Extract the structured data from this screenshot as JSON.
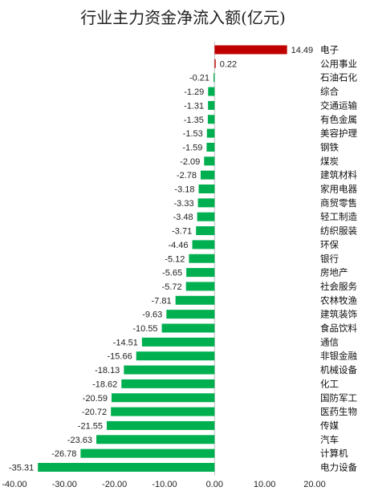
{
  "chart_data": {
    "type": "bar",
    "orientation": "horizontal",
    "title": "行业主力资金净流入额(亿元)",
    "xlabel": "",
    "ylabel": "",
    "xlim": [
      -40,
      20
    ],
    "x_ticks": [
      "-40.00",
      "-30.00",
      "-20.00",
      "-10.00",
      "0.00",
      "10.00",
      "20.00"
    ],
    "x_tick_values": [
      -40,
      -30,
      -20,
      -10,
      0,
      10,
      20
    ],
    "grid": false,
    "legend": "none",
    "categories": [
      "电子",
      "公用事业",
      "石油石化",
      "综合",
      "交通运输",
      "有色金属",
      "美容护理",
      "钢铁",
      "煤炭",
      "建筑材料",
      "家用电器",
      "商贸零售",
      "轻工制造",
      "纺织服装",
      "环保",
      "银行",
      "房地产",
      "社会服务",
      "农林牧渔",
      "建筑装饰",
      "食品饮料",
      "通信",
      "非银金融",
      "机械设备",
      "化工",
      "国防军工",
      "医药生物",
      "传媒",
      "汽车",
      "计算机",
      "电力设备"
    ],
    "values": [
      14.49,
      0.22,
      -0.21,
      -1.29,
      -1.31,
      -1.35,
      -1.53,
      -1.59,
      -2.09,
      -2.78,
      -3.18,
      -3.33,
      -3.48,
      -3.71,
      -4.46,
      -5.12,
      -5.65,
      -5.72,
      -7.81,
      -9.63,
      -10.55,
      -14.51,
      -15.66,
      -18.13,
      -18.62,
      -20.59,
      -20.72,
      -21.55,
      -23.63,
      -26.78,
      -35.31
    ],
    "value_labels": [
      "14.49",
      "0.22",
      "-0.21",
      "-1.29",
      "-1.31",
      "-1.35",
      "-1.53",
      "-1.59",
      "-2.09",
      "-2.78",
      "-3.18",
      "-3.33",
      "-3.48",
      "-3.71",
      "-4.46",
      "-5.12",
      "-5.65",
      "-5.72",
      "-7.81",
      "-9.63",
      "-10.55",
      "-14.51",
      "-15.66",
      "-18.13",
      "-18.62",
      "-20.59",
      "-20.72",
      "-21.55",
      "-23.63",
      "-26.78",
      "-35.31"
    ],
    "colors": {
      "positive": "#c00000",
      "negative": "#00b050",
      "axis": "#bfbfbf"
    }
  }
}
